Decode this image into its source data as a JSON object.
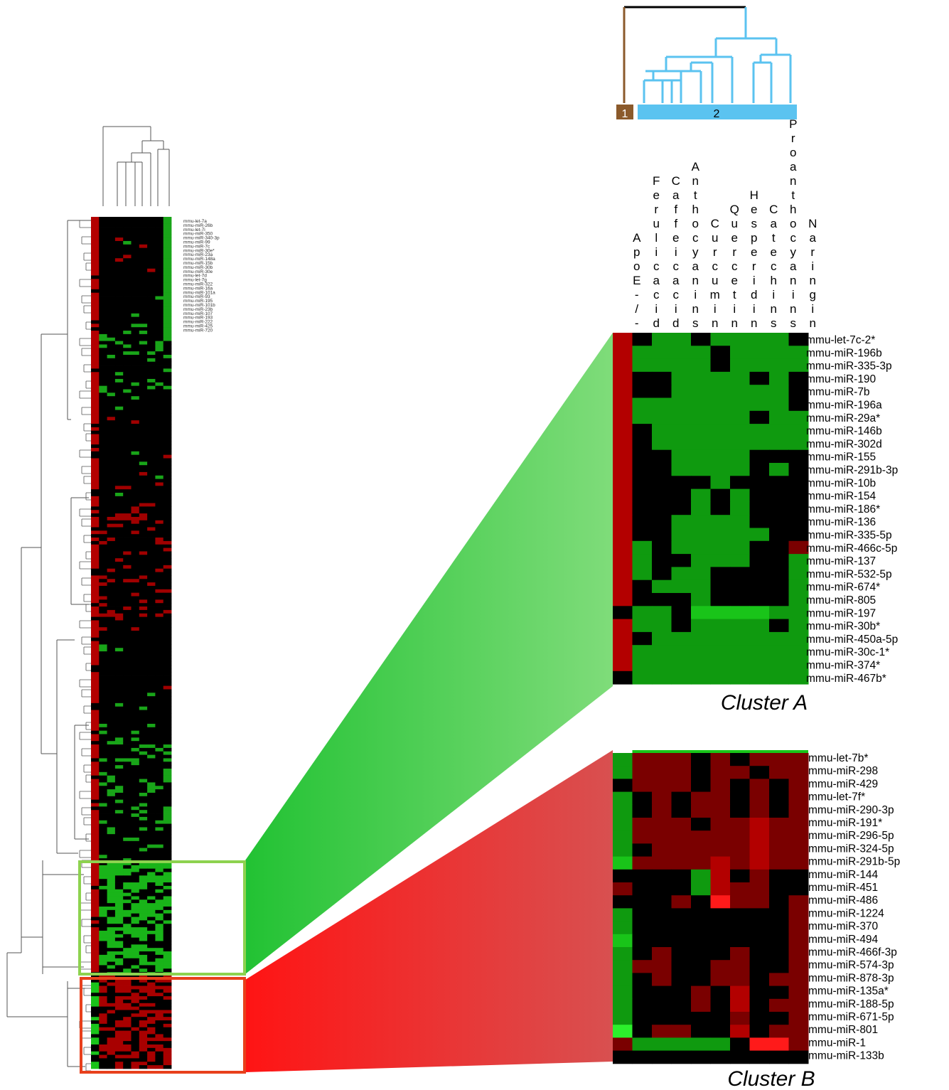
{
  "chart_data": [
    {
      "type": "heatmap",
      "name_shown": "",
      "columns": [
        "ApoE-/-",
        "Ferulic acid",
        "Caffeic acid",
        "Anthocyanins",
        "Curcumin",
        "Quercetin",
        "Hesperidin",
        "Catechins",
        "Proanthocyanins",
        "Naringin"
      ],
      "rows": [
        "mmu-let-7c-2*",
        "mmu-miR-196b",
        "mmu-miR-335-3p",
        "mmu-miR-190",
        "mmu-miR-7b",
        "mmu-miR-196a",
        "mmu-miR-29a*",
        "mmu-miR-146b",
        "mmu-miR-302d",
        "mmu-miR-155",
        "mmu-miR-291b-3p",
        "mmu-miR-10b",
        "mmu-miR-154",
        "mmu-miR-186*",
        "mmu-miR-136",
        "mmu-miR-335-5p",
        "mmu-miR-466c-5p",
        "mmu-miR-137",
        "mmu-miR-532-5p",
        "mmu-miR-674*",
        "mmu-miR-805",
        "mmu-miR-197",
        "mmu-miR-30b*",
        "mmu-miR-450a-5p",
        "mmu-miR-30c-1*",
        "mmu-miR-374*",
        "mmu-miR-467b*"
      ],
      "caption": "Cluster A",
      "values": [
        [
          2,
          0,
          -1,
          -1,
          0,
          -1,
          -1,
          -1,
          -1,
          0
        ],
        [
          2,
          -1,
          -1,
          -1,
          -1,
          0,
          -1,
          -1,
          -1,
          -1
        ],
        [
          2,
          -1,
          -1,
          -1,
          -1,
          0,
          -1,
          -1,
          -1,
          -1
        ],
        [
          2,
          0,
          0,
          -1,
          -1,
          -1,
          -1,
          0,
          -1,
          0
        ],
        [
          2,
          0,
          0,
          -1,
          -1,
          -1,
          -1,
          -1,
          -1,
          0
        ],
        [
          2,
          -1,
          -1,
          -1,
          -1,
          -1,
          -1,
          -1,
          -1,
          0
        ],
        [
          2,
          -1,
          -1,
          -1,
          -1,
          -1,
          -1,
          0,
          -1,
          -1
        ],
        [
          2,
          0,
          -1,
          -1,
          -1,
          -1,
          -1,
          -1,
          -1,
          -1
        ],
        [
          2,
          0,
          -1,
          -1,
          -1,
          -1,
          -1,
          -1,
          -1,
          -1
        ],
        [
          2,
          0,
          0,
          -1,
          -1,
          -1,
          -1,
          0,
          0,
          0
        ],
        [
          2,
          0,
          0,
          -1,
          -1,
          -1,
          -1,
          0,
          -1,
          0
        ],
        [
          2,
          0,
          0,
          0,
          0,
          -1,
          0,
          0,
          0,
          0
        ],
        [
          2,
          0,
          0,
          0,
          -1,
          0,
          -1,
          0,
          0,
          0
        ],
        [
          2,
          0,
          0,
          0,
          -1,
          0,
          -1,
          0,
          0,
          0
        ],
        [
          2,
          0,
          0,
          -1,
          -1,
          -1,
          -1,
          0,
          0,
          0
        ],
        [
          2,
          0,
          0,
          -1,
          -1,
          -1,
          -1,
          -1,
          0,
          0
        ],
        [
          2,
          -1,
          0,
          -1,
          -1,
          -1,
          -1,
          0,
          0,
          1
        ],
        [
          2,
          -1,
          0,
          0,
          -1,
          -1,
          -1,
          0,
          0,
          -1
        ],
        [
          2,
          -1,
          0,
          -1,
          -1,
          0,
          0,
          0,
          0,
          -1
        ],
        [
          2,
          0,
          -1,
          -1,
          -1,
          0,
          0,
          0,
          0,
          -1
        ],
        [
          2,
          0,
          0,
          0,
          -1,
          0,
          0,
          0,
          0,
          -1
        ],
        [
          0,
          -1,
          -1,
          0,
          -2,
          -2,
          -2,
          -2,
          -1,
          -1
        ],
        [
          2,
          -1,
          -1,
          0,
          -1,
          -1,
          -1,
          -1,
          0,
          -1
        ],
        [
          2,
          0,
          -1,
          -1,
          -1,
          -1,
          -1,
          -1,
          -1,
          -1
        ],
        [
          2,
          -1,
          -1,
          -1,
          -1,
          -1,
          -1,
          -1,
          -1,
          -1
        ],
        [
          2,
          -1,
          -1,
          -1,
          -1,
          -1,
          -1,
          -1,
          -1,
          -1
        ],
        [
          0,
          -1,
          -1,
          -1,
          -1,
          -1,
          -1,
          -1,
          -1,
          -1
        ]
      ]
    },
    {
      "type": "heatmap",
      "rows": [
        "mmu-let-7b*",
        "mmu-miR-298",
        "mmu-miR-429",
        "mmu-let-7f*",
        "mmu-miR-290-3p",
        "mmu-miR-191*",
        "mmu-miR-296-5p",
        "mmu-miR-324-5p",
        "mmu-miR-291b-5p",
        "mmu-miR-144",
        "mmu-miR-451",
        "mmu-miR-486",
        "mmu-miR-1224",
        "mmu-miR-370",
        "mmu-miR-494",
        "mmu-miR-466f-3p",
        "mmu-miR-574-3p",
        "mmu-miR-878-3p",
        "mmu-miR-135a*",
        "mmu-miR-188-5p",
        "mmu-miR-671-5p",
        "mmu-miR-801",
        "mmu-miR-1",
        "mmu-miR-133b"
      ],
      "caption": "Cluster B",
      "values": [
        [
          -1,
          1,
          1,
          1,
          0,
          1,
          0,
          1,
          1,
          1
        ],
        [
          -1,
          1,
          1,
          1,
          0,
          1,
          1,
          0,
          1,
          1
        ],
        [
          0,
          1,
          1,
          1,
          0,
          1,
          0,
          1,
          0,
          1
        ],
        [
          -1,
          0,
          1,
          0,
          1,
          1,
          0,
          1,
          0,
          1
        ],
        [
          -1,
          0,
          1,
          0,
          1,
          1,
          0,
          1,
          0,
          1
        ],
        [
          -1,
          1,
          1,
          1,
          0,
          1,
          1,
          2,
          1,
          1
        ],
        [
          -1,
          1,
          1,
          1,
          1,
          1,
          1,
          2,
          1,
          1
        ],
        [
          -1,
          0,
          1,
          1,
          1,
          1,
          1,
          2,
          1,
          1
        ],
        [
          -2,
          1,
          1,
          1,
          1,
          2,
          1,
          2,
          1,
          1
        ],
        [
          0,
          0,
          0,
          0,
          -1,
          2,
          0,
          1,
          0,
          0
        ],
        [
          1,
          0,
          0,
          0,
          -1,
          2,
          1,
          1,
          0,
          0
        ],
        [
          0,
          0,
          0,
          1,
          0,
          3,
          1,
          1,
          0,
          1
        ],
        [
          -1,
          0,
          0,
          0,
          0,
          0,
          0,
          0,
          0,
          1
        ],
        [
          -1,
          0,
          0,
          0,
          0,
          0,
          0,
          0,
          0,
          1
        ],
        [
          -2,
          0,
          0,
          0,
          0,
          0,
          0,
          0,
          0,
          1
        ],
        [
          -1,
          0,
          1,
          0,
          0,
          0,
          1,
          0,
          0,
          1
        ],
        [
          -1,
          1,
          1,
          0,
          0,
          1,
          1,
          0,
          0,
          1
        ],
        [
          -1,
          0,
          1,
          0,
          0,
          1,
          1,
          0,
          1,
          1
        ],
        [
          -1,
          0,
          0,
          0,
          1,
          0,
          2,
          0,
          0,
          1
        ],
        [
          -1,
          0,
          0,
          0,
          1,
          0,
          2,
          0,
          1,
          1
        ],
        [
          -1,
          0,
          0,
          0,
          0,
          0,
          1,
          0,
          0,
          1
        ],
        [
          -3,
          0,
          1,
          1,
          0,
          0,
          2,
          0,
          1,
          1
        ],
        [
          1,
          -1,
          -1,
          -1,
          -1,
          -1,
          0,
          3,
          3,
          1
        ],
        [
          0,
          0,
          0,
          0,
          0,
          0,
          0,
          0,
          0,
          0
        ]
      ]
    },
    {
      "type": "dendrogram",
      "group_labels": [
        "1",
        "2"
      ],
      "group_colors": [
        "#8b5a2b",
        "#5bc3f0"
      ]
    },
    {
      "type": "heatmap",
      "description_shown": "",
      "overview_columns": [
        "ApoE-/-",
        "Ferulic acid",
        "Caffeic acid",
        "Anthocyanins",
        "Curcumin",
        "Quercetin",
        "Hesperidin",
        "Catechins",
        "Proanthocyanins",
        "Naringin"
      ],
      "overview_rows": [
        "mmu-let-7a",
        "mmu-miR-26b",
        "mmu-let-7i",
        "mmu-miR-350",
        "mmu-miR-340-3p",
        "mmu-miR-99",
        "mmu-miR-7c",
        "mmu-miR-30e*",
        "mmu-miR-23a",
        "mmu-miR-148a",
        "mmu-miR-15b",
        "mmu-miR-30b",
        "mmu-miR-30e",
        "mmu-let-7d",
        "mmu-let-7g",
        "mmu-miR-322",
        "mmu-miR-16a",
        "mmu-miR-101a",
        "mmu-miR-93",
        "mmu-miR-195",
        "mmu-miR-101b",
        "mmu-miR-23b",
        "mmu-miR-107",
        "mmu-miR-193",
        "mmu-miR-222",
        "mmu-miR-425",
        "mmu-miR-720"
      ]
    }
  ],
  "colors": {
    "high": "#d40000",
    "low": "#18d018",
    "mid": "#000000",
    "cluster_a_box": "#8dd24f",
    "cluster_b_box": "#e8401c"
  }
}
